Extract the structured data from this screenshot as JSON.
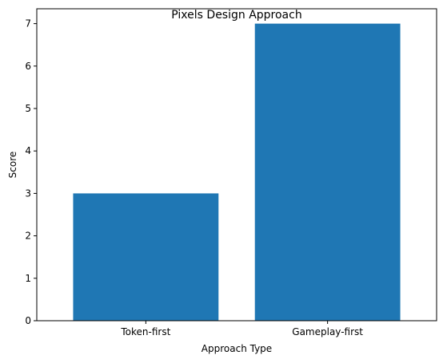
{
  "chart_data": {
    "type": "bar",
    "title": "Pixels Design Approach",
    "xlabel": "Approach Type",
    "ylabel": "Score",
    "categories": [
      "Token-first",
      "Gameplay-first"
    ],
    "values": [
      3,
      7
    ],
    "ylim": [
      0,
      7.35
    ],
    "yticks": [
      "0",
      "1",
      "2",
      "3",
      "4",
      "5",
      "6",
      "7"
    ],
    "grid": false,
    "bar_color": "#1f77b4"
  }
}
